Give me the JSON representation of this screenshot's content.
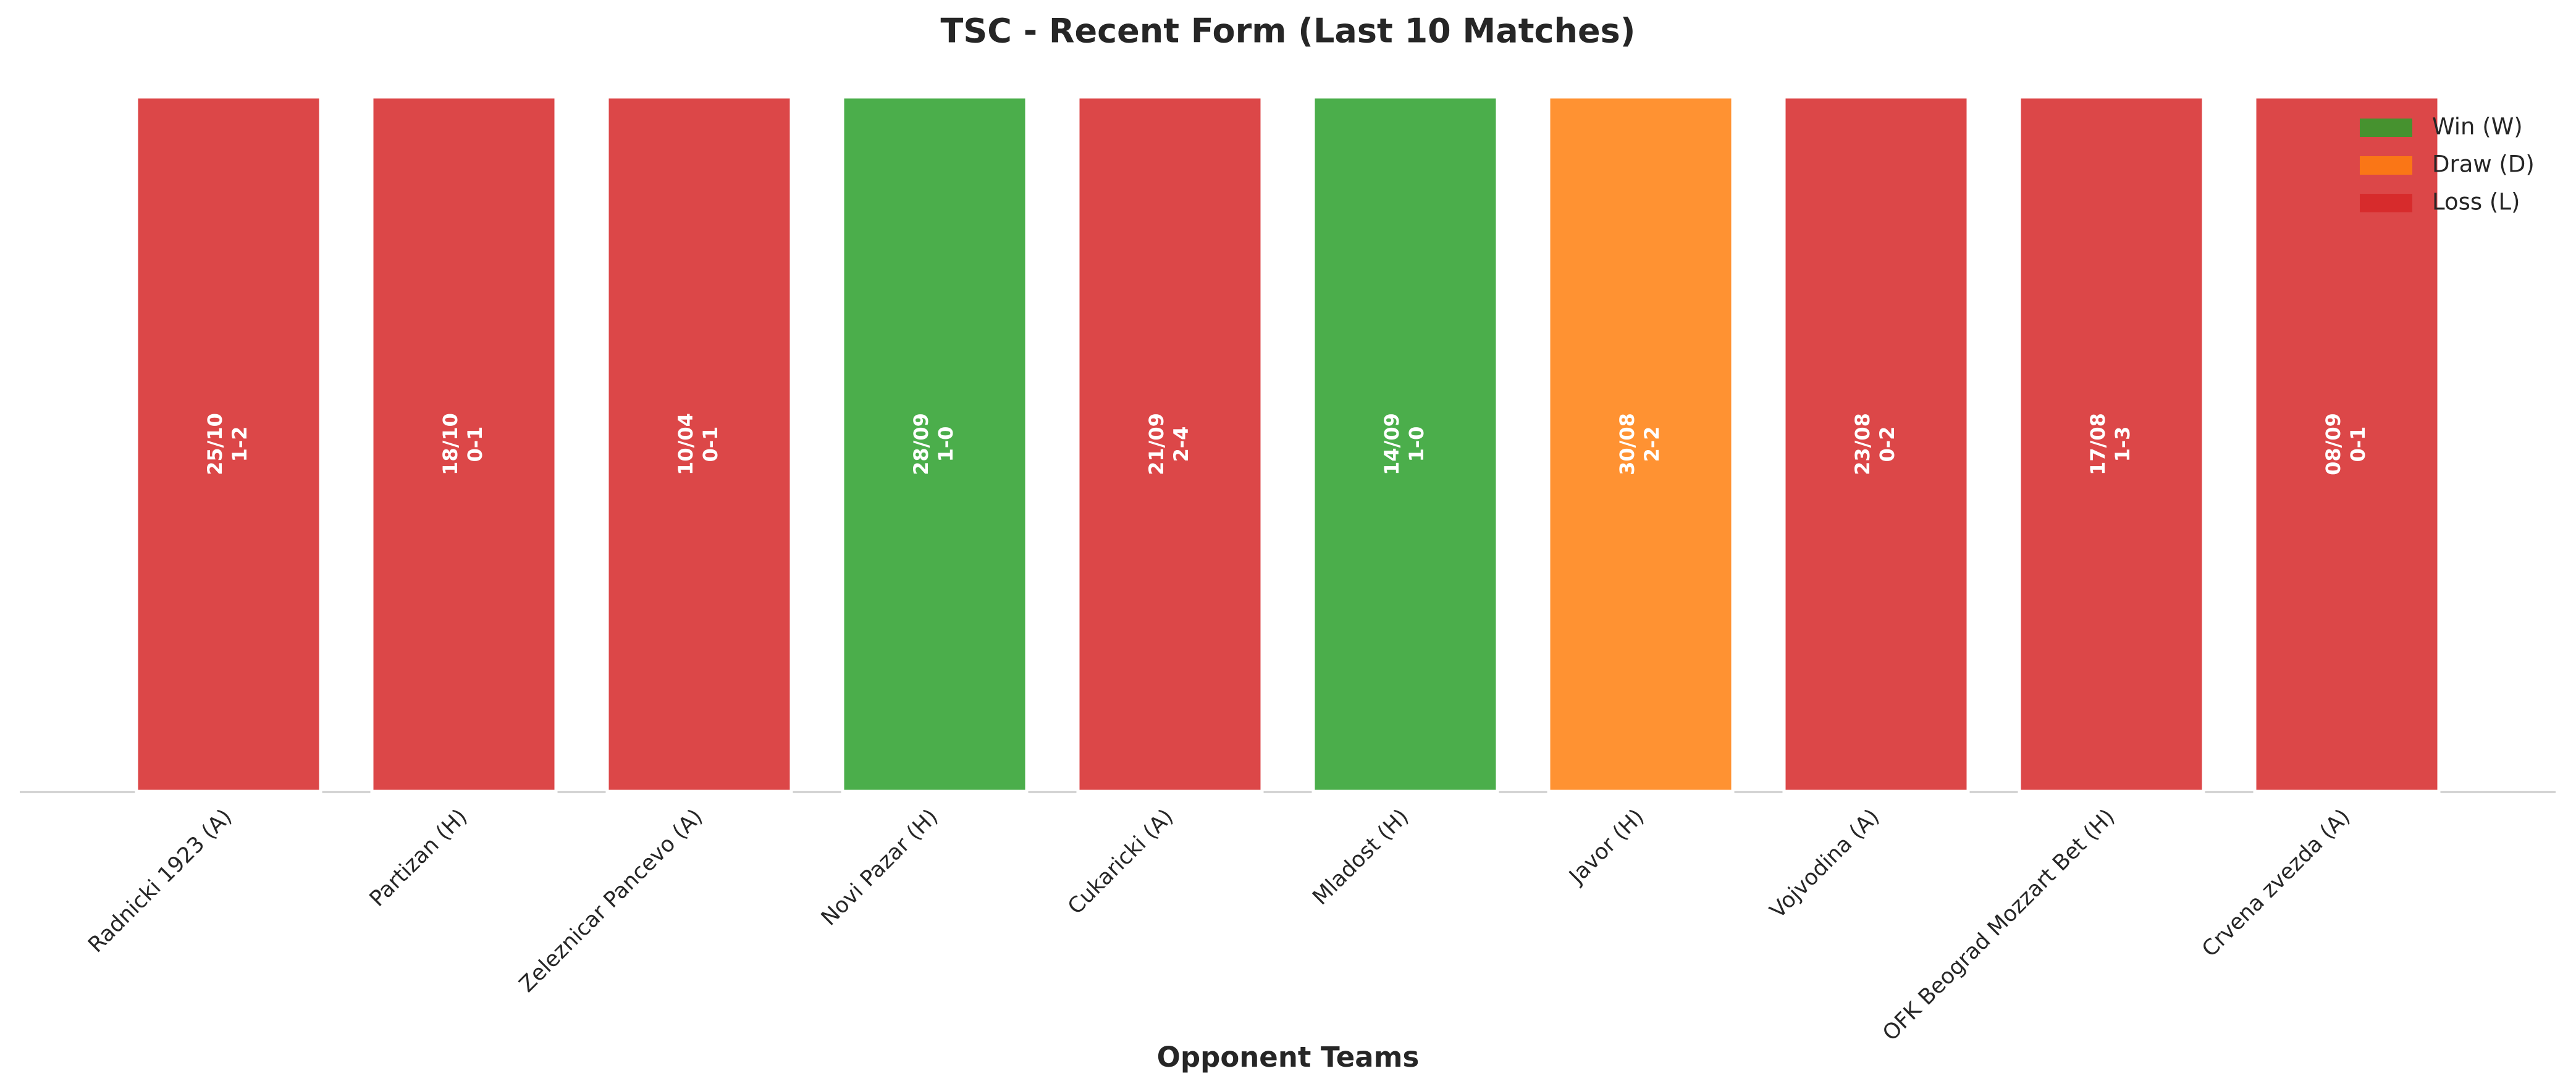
{
  "chart_data": {
    "type": "bar",
    "title": "TSC - Recent Form (Last 10 Matches)",
    "x_label": "Opponent Teams",
    "categories": [
      "Radnicki 1923 (A)",
      "Partizan (H)",
      "Zeleznicar Pancevo (A)",
      "Novi Pazar (H)",
      "Cukaricki (A)",
      "Mladost (H)",
      "Javor (H)",
      "Vojvodina (A)",
      "OFK Beograd Mozzart Bet (H)",
      "Crvena zvezda (A)"
    ],
    "values": [
      1,
      1,
      1,
      1,
      1,
      1,
      1,
      1,
      1,
      1
    ],
    "dates": [
      "25/10",
      "18/10",
      "10/04",
      "28/09",
      "21/09",
      "14/09",
      "30/08",
      "23/08",
      "17/08",
      "08/09"
    ],
    "scores": [
      "1-2",
      "0-1",
      "0-1",
      "1-0",
      "2-4",
      "1-0",
      "2-2",
      "0-2",
      "1-3",
      "0-1"
    ],
    "colors": [
      "#d62728",
      "#d62728",
      "#d62728",
      "#2ca02c",
      "#d62728",
      "#2ca02c",
      "#ff7f0e",
      "#d62728",
      "#d62728",
      "#d62728"
    ],
    "ylim": [
      0,
      1
    ],
    "legend": [
      {
        "name": "Win (W)",
        "color": "#2ca02c"
      },
      {
        "name": "Draw (D)",
        "color": "#ff7f0e"
      },
      {
        "name": "Loss (L)",
        "color": "#d62728"
      }
    ],
    "legend_position": "upper right"
  }
}
